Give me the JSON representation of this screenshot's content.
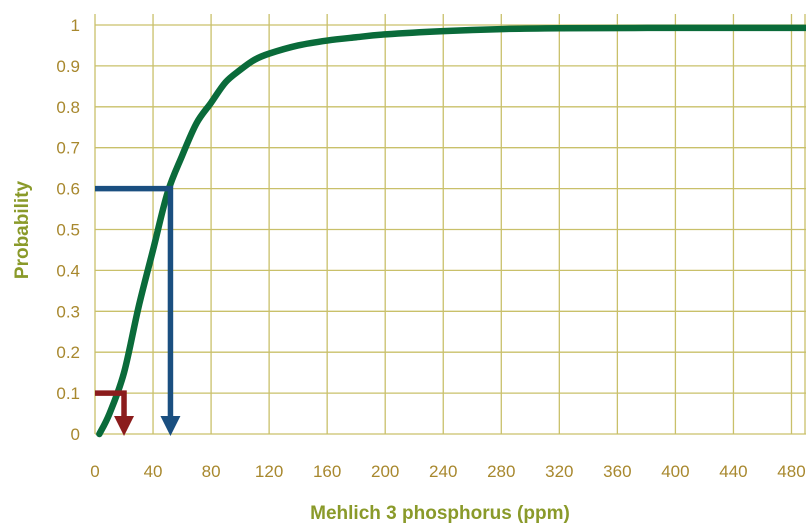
{
  "chart_data": {
    "type": "line",
    "title": "",
    "xlabel": "Mehlich 3 phosphorus (ppm)",
    "ylabel": "Probability",
    "xlim": [
      0,
      490
    ],
    "ylim": [
      0,
      1
    ],
    "x_ticks": [
      0,
      40,
      80,
      120,
      160,
      200,
      240,
      280,
      320,
      360,
      400,
      440,
      480
    ],
    "y_ticks": [
      0,
      0.1,
      0.2,
      0.3,
      0.4,
      0.5,
      0.6,
      0.7,
      0.8,
      0.9,
      1
    ],
    "x_tick_labels": [
      "0",
      "40",
      "80",
      "120",
      "160",
      "200",
      "240",
      "280",
      "320",
      "360",
      "400",
      "440",
      "480"
    ],
    "y_tick_labels": [
      "0",
      "0.1",
      "0.2",
      "0.3",
      "0.4",
      "0.5",
      "0.6",
      "0.7",
      "0.8",
      "0.9",
      "1"
    ],
    "grid": true,
    "series": [
      {
        "color": "#0a6b3a",
        "x": [
          3,
          10,
          20,
          30,
          40,
          50,
          60,
          70,
          80,
          90,
          100,
          110,
          120,
          140,
          160,
          180,
          200,
          240,
          280,
          320,
          400,
          490
        ],
        "y": [
          0,
          0.05,
          0.15,
          0.31,
          0.45,
          0.59,
          0.68,
          0.76,
          0.81,
          0.86,
          0.89,
          0.915,
          0.93,
          0.95,
          0.962,
          0.97,
          0.977,
          0.985,
          0.99,
          0.992,
          0.993,
          0.993
        ]
      }
    ],
    "annotations": [
      {
        "name": "low-threshold-arrow",
        "color": "#8b1c1c",
        "x": 20,
        "y": 0.1
      },
      {
        "name": "high-threshold-arrow",
        "color": "#1a4f80",
        "x": 52,
        "y": 0.6
      }
    ],
    "colors": {
      "grid": "#c9c06a",
      "tick_label": "#a8882e",
      "axis_title": "#8a9a2a"
    }
  }
}
